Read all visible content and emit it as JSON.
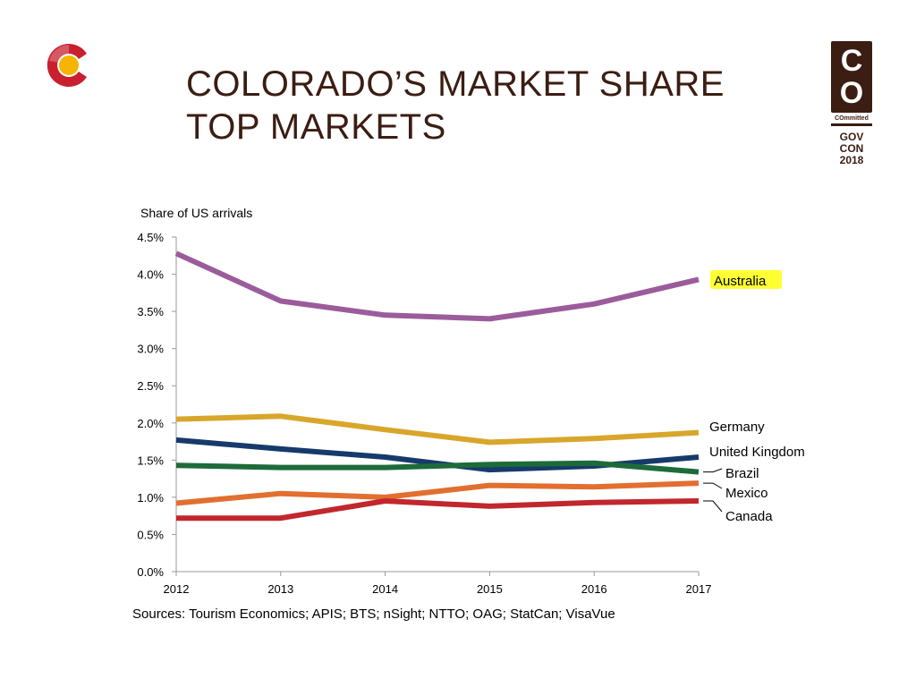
{
  "slide": {
    "title_line1": "COLORADO’S MARKET SHARE",
    "title_line2": "TOP MARKETS",
    "badge": {
      "top_letter": "C",
      "bottom_letter": "O",
      "tag": "COmmitted",
      "event_line1": "GOV",
      "event_line2": "CON",
      "event_line3": "2018"
    },
    "logo_icon": "colorado-flag-c-logo",
    "colors": {
      "title": "#3b1d12",
      "highlight": "#ffff33"
    }
  },
  "chart_data": {
    "type": "line",
    "ylabel": "Share of US arrivals",
    "x": [
      "2012",
      "2013",
      "2014",
      "2015",
      "2016",
      "2017"
    ],
    "ylim": [
      0,
      4.5
    ],
    "yticks": [
      "0.0%",
      "0.5%",
      "1.0%",
      "1.5%",
      "2.0%",
      "2.5%",
      "3.0%",
      "3.5%",
      "4.0%",
      "4.5%"
    ],
    "grid": false,
    "legend": "inline-right",
    "source": "Sources: Tourism Economics; APIS; BTS; nSight; NTTO; OAG; StatCan; VisaVue",
    "series": [
      {
        "name": "Australia",
        "color": "#9b5c9c",
        "values": [
          4.28,
          3.64,
          3.45,
          3.4,
          3.6,
          3.93
        ],
        "highlighted": true
      },
      {
        "name": "Germany",
        "color": "#d8a62a",
        "values": [
          2.05,
          2.09,
          1.91,
          1.74,
          1.79,
          1.87
        ]
      },
      {
        "name": "United Kingdom",
        "color": "#163a6b",
        "values": [
          1.77,
          1.65,
          1.54,
          1.37,
          1.42,
          1.54
        ]
      },
      {
        "name": "Brazil",
        "color": "#1e6b3a",
        "values": [
          1.43,
          1.4,
          1.4,
          1.44,
          1.46,
          1.34
        ]
      },
      {
        "name": "Mexico",
        "color": "#e26f2f",
        "values": [
          0.92,
          1.05,
          1.0,
          1.16,
          1.14,
          1.19
        ]
      },
      {
        "name": "Canada",
        "color": "#c1272d",
        "values": [
          0.72,
          0.72,
          0.95,
          0.88,
          0.93,
          0.95
        ]
      }
    ]
  }
}
